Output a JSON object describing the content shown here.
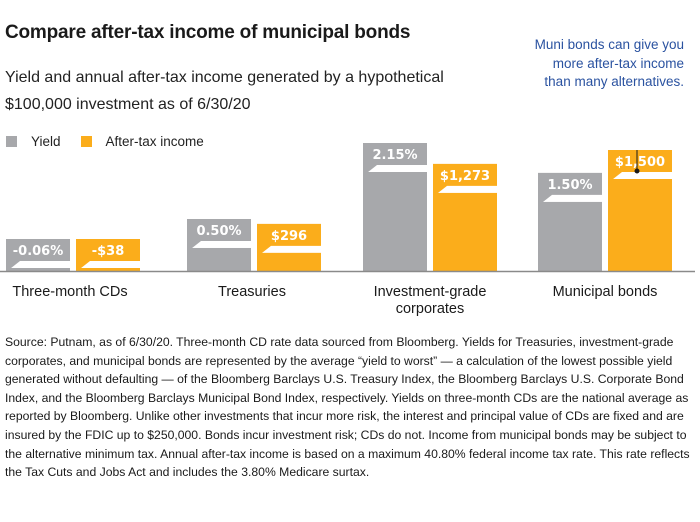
{
  "title": "Compare after-tax income of municipal bonds",
  "subtitle": "Yield and annual after-tax income generated by a hypothetical $100,000 investment as of 6/30/20",
  "callout": "Muni bonds can give you more after-tax income than many alternatives.",
  "colors": {
    "yield": "#a7a8ab",
    "income": "#fbad1b",
    "callout": "#2a52a0",
    "axis": "#8a8a8a"
  },
  "chart_data": {
    "type": "bar",
    "title": "Compare after-tax income of municipal bonds",
    "subtitle": "Yield and annual after-tax income generated by a hypothetical $100,000 investment as of 6/30/20",
    "categories": [
      "Three-month CDs",
      "Treasuries",
      "Investment-grade corporates",
      "Municipal bonds"
    ],
    "category_lines": [
      [
        "Three-month CDs"
      ],
      [
        "Treasuries"
      ],
      [
        "Investment-grade",
        "corporates"
      ],
      [
        "Municipal bonds"
      ]
    ],
    "series": [
      {
        "name": "Yield",
        "values": [
          -0.06,
          0.5,
          2.15,
          1.5
        ],
        "labels": [
          "-0.06%",
          "0.50%",
          "2.15%",
          "1.50%"
        ],
        "unit": "percent"
      },
      {
        "name": "After-tax income",
        "values": [
          -38,
          296,
          1273,
          1500
        ],
        "labels": [
          "-$38",
          "$296",
          "$1,273",
          "$1,500"
        ],
        "unit": "USD"
      }
    ],
    "legend": [
      "Yield",
      "After-tax income"
    ],
    "legend_position": "top-left",
    "grid": false,
    "annotation": {
      "text": "Muni bonds can give you more after-tax income than many alternatives.",
      "target": "Municipal bonds / After-tax income"
    }
  },
  "footnote": "Source: Putnam, as of 6/30/20. Three-month CD rate data sourced from Bloomberg. Yields for Treasuries, investment-grade corporates, and municipal bonds are represented by the average “yield to worst” — a calculation of the lowest possible yield generated without defaulting — of the Bloomberg Barclays U.S. Treasury Index, the Bloomberg Barclays U.S. Corporate Bond Index, and the Bloomberg Barclays Municipal Bond Index, respectively. Yields on three-month CDs are the national average as reported by Bloomberg. Unlike other investments that incur more risk, the interest and principal value of CDs are fixed and are insured by the FDIC up to $250,000. Bonds incur investment risk; CDs do not. Income from municipal bonds may be subject to the alternative minimum tax. Annual after-tax income is based on a maximum 40.80% federal income tax rate. This rate reflects the Tax Cuts and Jobs Act and includes the 3.80% Medicare surtax."
}
